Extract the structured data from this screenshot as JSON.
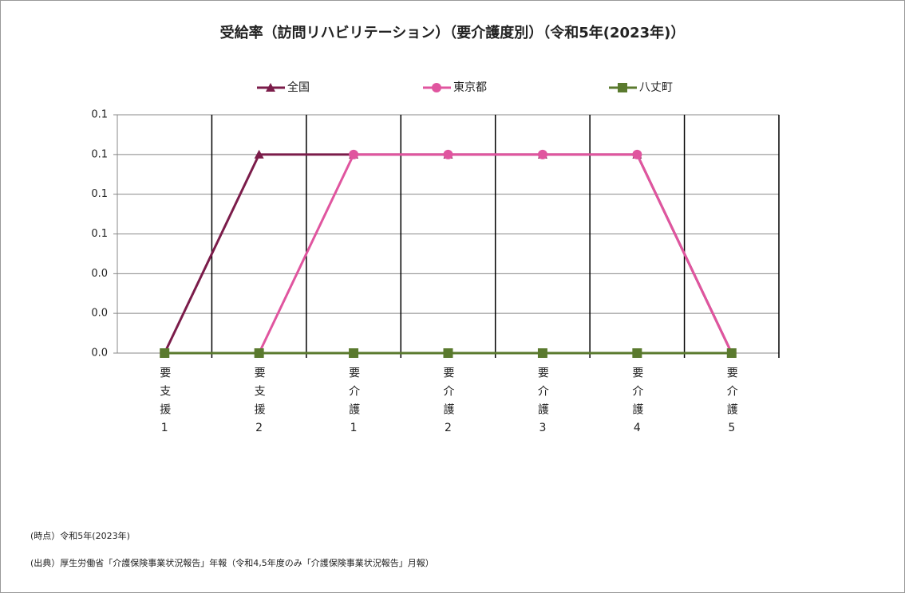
{
  "chart_data": {
    "type": "line",
    "title": "受給率（訪問リハビリテーション）（要介護度別）（令和5年(2023年)）",
    "categories": [
      "要支援1",
      "要支援2",
      "要介護1",
      "要介護2",
      "要介護3",
      "要介護4",
      "要介護5"
    ],
    "series": [
      {
        "name": "全国",
        "color": "#7b1c4a",
        "marker": "triangle",
        "values": [
          0,
          0.1,
          0.1,
          0.1,
          0.1,
          0.1,
          0
        ]
      },
      {
        "name": "東京都",
        "color": "#e0559f",
        "marker": "circle",
        "values": [
          0,
          0,
          0.1,
          0.1,
          0.1,
          0.1,
          0
        ]
      },
      {
        "name": "八丈町",
        "color": "#5a7a2e",
        "marker": "square",
        "values": [
          0,
          0,
          0,
          0,
          0,
          0,
          0
        ]
      }
    ],
    "ylim": [
      0,
      0.12
    ],
    "yticks": [
      {
        "value": 0,
        "label": "0.0"
      },
      {
        "value": 0.02,
        "label": "0.0"
      },
      {
        "value": 0.04,
        "label": "0.0"
      },
      {
        "value": 0.06,
        "label": "0.1"
      },
      {
        "value": 0.08,
        "label": "0.1"
      },
      {
        "value": 0.1,
        "label": "0.1"
      },
      {
        "value": 0.12,
        "label": "0.1"
      }
    ],
    "grid": true,
    "legend": "top",
    "notes": [
      "(時点）令和5年(2023年)",
      "(出典）厚生労働省「介護保険事業状況報告」年報（令和4,5年度のみ「介護保険事業状況報告」月報）"
    ]
  }
}
